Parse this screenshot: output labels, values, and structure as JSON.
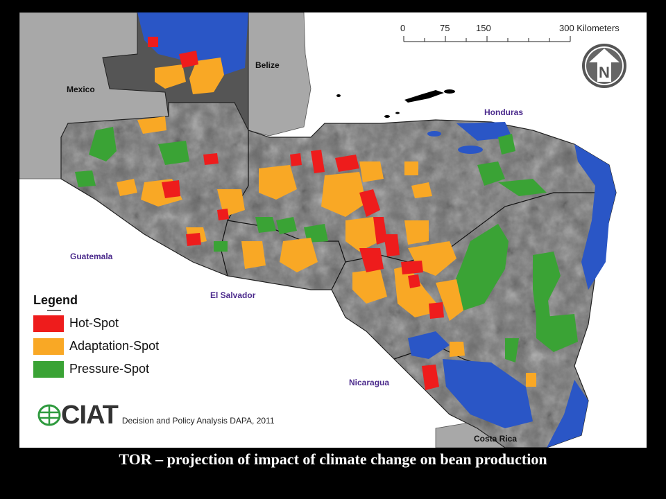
{
  "countries": {
    "mexico": "Mexico",
    "belize": "Belize",
    "guatemala": "Guatemala",
    "honduras": "Honduras",
    "el_salvador": "El Salvador",
    "nicaragua": "Nicaragua",
    "costa_rica": "Costa Rica"
  },
  "scale_bar": {
    "ticks": [
      "0",
      "75",
      "150",
      "300 Kilometers"
    ]
  },
  "north_arrow": {
    "label": "N"
  },
  "legend": {
    "title": "Legend",
    "items": [
      {
        "label": "Hot-Spot",
        "color": "#ee1c1c"
      },
      {
        "label": "Adaptation-Spot",
        "color": "#f9a825"
      },
      {
        "label": "Pressure-Spot",
        "color": "#3aa335"
      }
    ]
  },
  "credit": {
    "logo_text": "CIAT",
    "text": "Decision and Policy Analysis DAPA, 2011"
  },
  "caption": "TOR – projection of impact of climate change on bean production",
  "colors": {
    "water": "#ffffff",
    "other_land": "#a8a8a8",
    "study_area": "#7a7a7a",
    "blue_zone": "#2a56c6",
    "label_purple": "#4b2a8c"
  }
}
